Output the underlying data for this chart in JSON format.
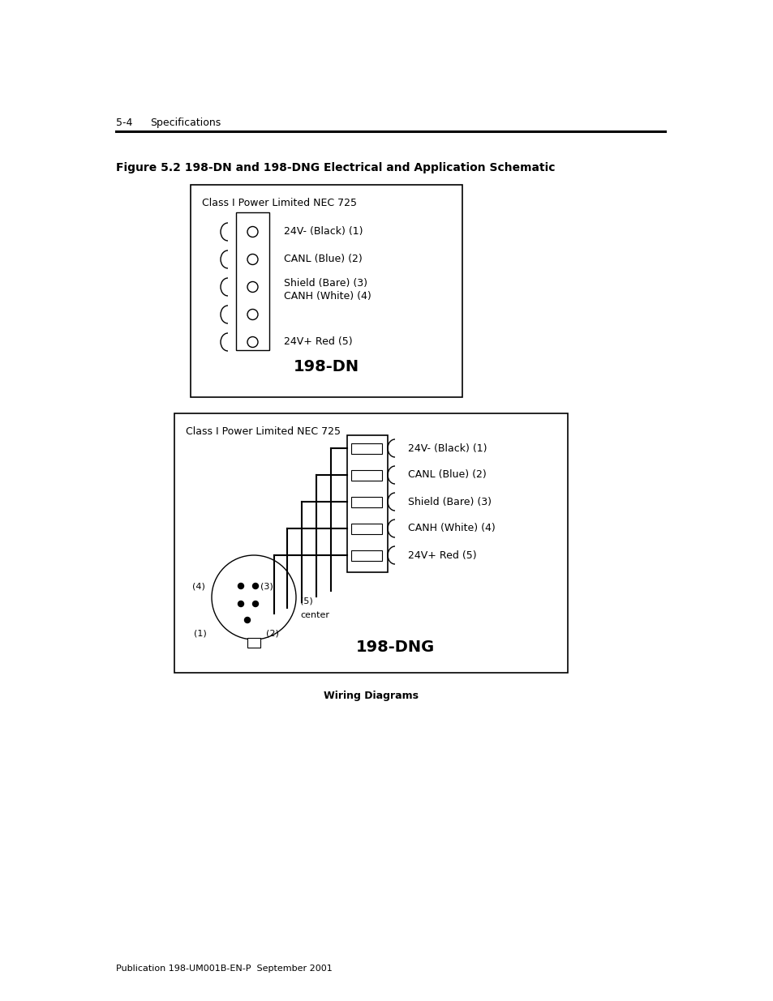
{
  "page_header_left": "5-4",
  "page_header_right": "Specifications",
  "figure_title": "Figure 5.2 198-DN and 198-DNG Electrical and Application Schematic",
  "class_label": "Class I Power Limited NEC 725",
  "pin_labels": [
    "24V- (Black) (1)",
    "CANL (Blue) (2)",
    "Shield (Bare) (3)",
    "CANH (White) (4)",
    "24V+ Red (5)"
  ],
  "dn_label": "198-DN",
  "dng_label": "198-DNG",
  "wiring_caption": "Wiring Diagrams",
  "footer_text": "Publication 198-UM001B-EN-P  September 2001",
  "bg_color": "#ffffff",
  "line_color": "#000000"
}
